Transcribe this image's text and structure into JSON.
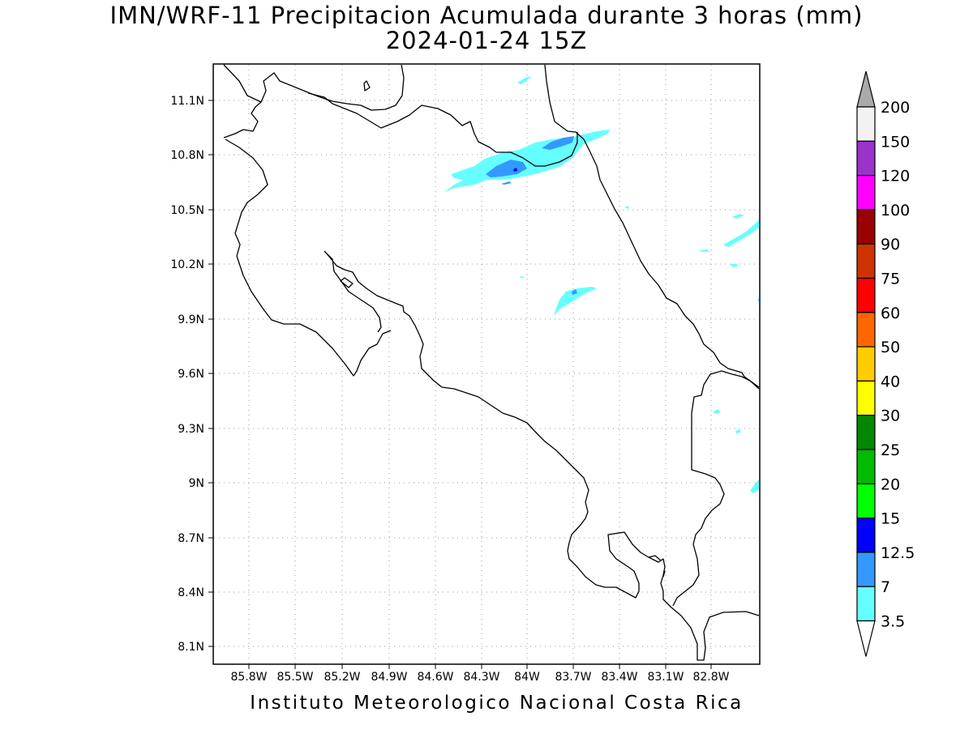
{
  "title": {
    "line1": "IMN/WRF-11 Precipitacion Acumulada durante 3 horas (mm)",
    "line2": "2024-01-24 15Z"
  },
  "footer": "Instituto Meteorologico Nacional Costa Rica",
  "axes": {
    "x_ticks": [
      "85.8W",
      "85.5W",
      "85.2W",
      "84.9W",
      "84.6W",
      "84.3W",
      "84W",
      "83.7W",
      "83.4W",
      "83.1W",
      "82.8W"
    ],
    "y_ticks": [
      "11.1N",
      "10.8N",
      "10.5N",
      "10.2N",
      "9.9N",
      "9.6N",
      "9.3N",
      "9N",
      "8.7N",
      "8.4N",
      "8.1N"
    ],
    "grid": "dotted"
  },
  "colorbar": {
    "labels": [
      "200",
      "150",
      "120",
      "100",
      "90",
      "75",
      "60",
      "50",
      "40",
      "30",
      "25",
      "20",
      "15",
      "12.5",
      "7",
      "3.5"
    ],
    "colors": [
      "#f2f2f2",
      "#9933cc",
      "#ff00ff",
      "#990000",
      "#cc3300",
      "#ff0000",
      "#ff6600",
      "#ffcc00",
      "#ffff00",
      "#008800",
      "#00bb00",
      "#00ff00",
      "#0000ff",
      "#3399ff",
      "#66ffff"
    ],
    "over_color": "#aaaaaa",
    "under_color": "#ffffff"
  },
  "legend_colors": {
    "rain_3_5": "#66ffff",
    "rain_7": "#3399ff",
    "rain_12_5": "#0000ff"
  }
}
